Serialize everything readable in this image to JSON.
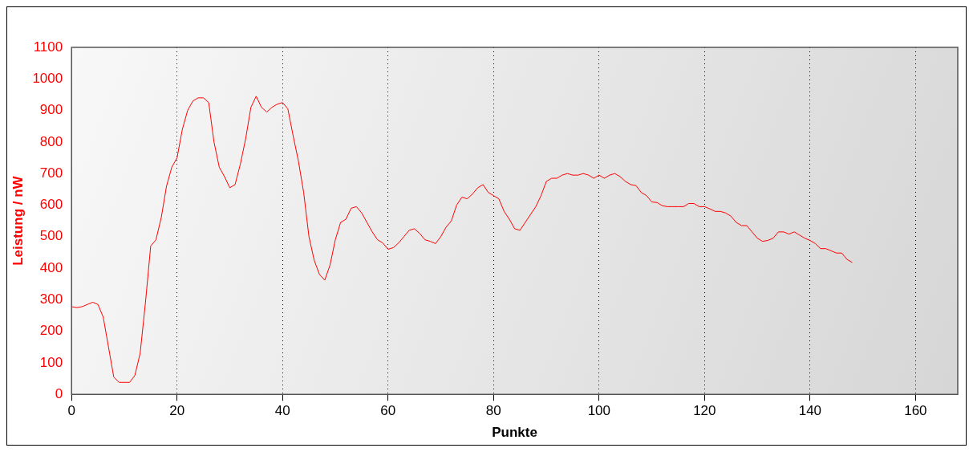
{
  "chart_data": {
    "type": "line",
    "xlabel": "Punkte",
    "ylabel": "Leistung / nW",
    "x": [
      0,
      1,
      2,
      4,
      5,
      6,
      7,
      8,
      9,
      10,
      11,
      12,
      13,
      14,
      15,
      16,
      17,
      18,
      19,
      20,
      21,
      22,
      23,
      24,
      25,
      26,
      27,
      28,
      29,
      30,
      31,
      32,
      33,
      34,
      35,
      36,
      37,
      38,
      39,
      40,
      41,
      42,
      43,
      44,
      45,
      46,
      47,
      48,
      49,
      50,
      51,
      52,
      53,
      54,
      55,
      56,
      57,
      58,
      59,
      60,
      61,
      62,
      63,
      64,
      65,
      66,
      67,
      68,
      69,
      70,
      71,
      72,
      73,
      74,
      75,
      76,
      77,
      78,
      79,
      80,
      81,
      82,
      83,
      84,
      85,
      86,
      87,
      88,
      89,
      90,
      91,
      92,
      93,
      94,
      95,
      96,
      97,
      98,
      99,
      100,
      101,
      102,
      103,
      104,
      105,
      106,
      107,
      108,
      109,
      110,
      111,
      112,
      113,
      114,
      115,
      116,
      117,
      118,
      119,
      120,
      121,
      122,
      123,
      124,
      125,
      126,
      127,
      128,
      129,
      130,
      131,
      132,
      133,
      134,
      135,
      136,
      137,
      138,
      139,
      140,
      141,
      142,
      143,
      144,
      145,
      146,
      147,
      148
    ],
    "series": [
      {
        "color": "#ff0000",
        "values": [
          278,
          275,
          278,
          292,
          285,
          245,
          150,
          55,
          38,
          38,
          38,
          60,
          130,
          290,
          470,
          490,
          560,
          660,
          720,
          750,
          840,
          900,
          930,
          940,
          940,
          925,
          800,
          720,
          690,
          655,
          665,
          730,
          810,
          910,
          945,
          910,
          895,
          910,
          920,
          925,
          905,
          820,
          740,
          640,
          500,
          425,
          380,
          362,
          410,
          490,
          545,
          555,
          590,
          595,
          575,
          545,
          515,
          490,
          480,
          460,
          465,
          480,
          500,
          520,
          525,
          510,
          490,
          485,
          478,
          500,
          530,
          550,
          600,
          625,
          620,
          635,
          655,
          665,
          640,
          630,
          620,
          580,
          555,
          525,
          520,
          545,
          570,
          595,
          630,
          675,
          685,
          685,
          695,
          700,
          695,
          695,
          700,
          695,
          685,
          695,
          685,
          695,
          700,
          690,
          675,
          665,
          662,
          640,
          630,
          610,
          608,
          598,
          595,
          595,
          595,
          595,
          605,
          605,
          595,
          595,
          588,
          580,
          580,
          575,
          565,
          545,
          535,
          535,
          515,
          495,
          485,
          488,
          495,
          515,
          515,
          508,
          515,
          505,
          495,
          488,
          478,
          462,
          462,
          455,
          448,
          448,
          428,
          418
        ]
      }
    ],
    "xlim": [
      0,
      168
    ],
    "xticks": [
      0,
      20,
      40,
      60,
      80,
      100,
      120,
      140,
      160
    ],
    "ylim": [
      0,
      1100
    ],
    "yticks": [
      0,
      100,
      200,
      300,
      400,
      500,
      600,
      700,
      800,
      900,
      1000,
      1100
    ],
    "grid": "x",
    "legend": false,
    "marker": "none",
    "line_style": "solid"
  }
}
